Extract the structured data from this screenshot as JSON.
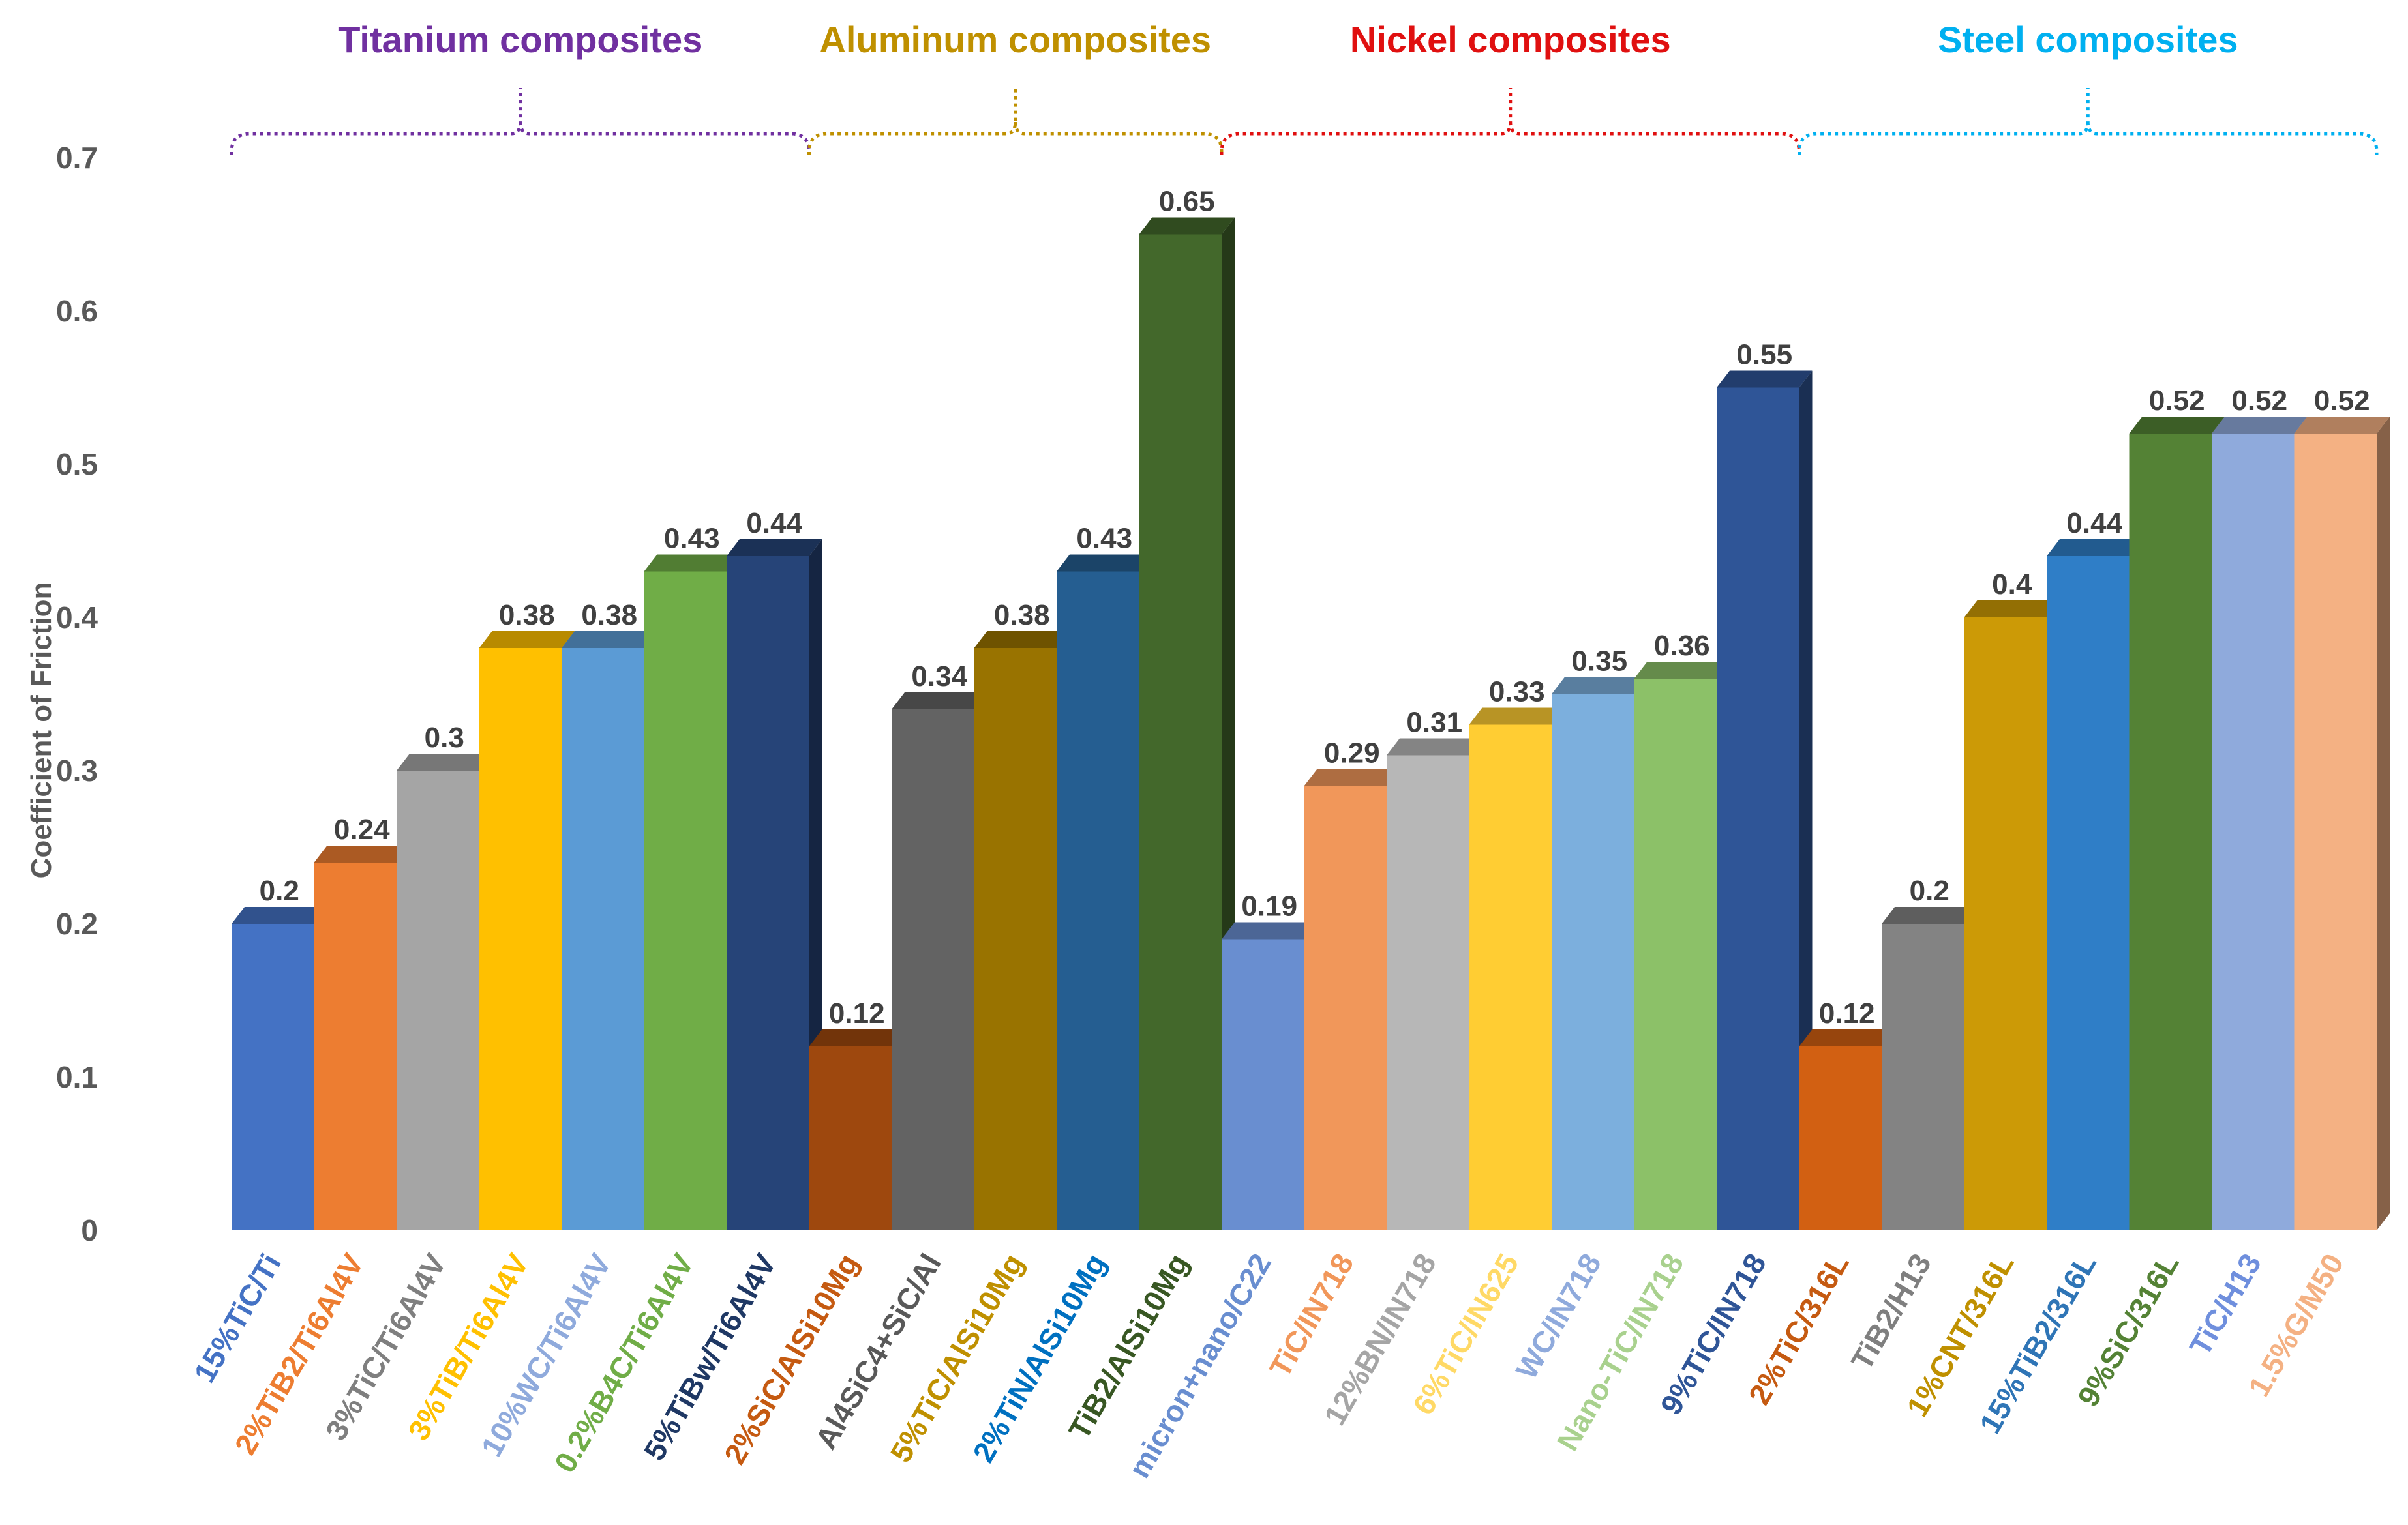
{
  "chart_data": {
    "type": "bar",
    "title": "",
    "xlabel": "",
    "ylabel": "Coefficient of Friction",
    "ylim": [
      0,
      0.7
    ],
    "yticks": [
      "0",
      "0.1",
      "0.2",
      "0.3",
      "0.4",
      "0.5",
      "0.6",
      "0.7"
    ],
    "grid": false,
    "categories": [
      "15%TiC/Ti",
      "2%TiB2/Ti6Al4V",
      "3%TiC/Ti6Al4V",
      "3%TiB/Ti6Al4V",
      "10%WC/Ti6Al4V",
      "0.2%B4C/Ti6Al4V",
      "5%TiBw/Ti6Al4V",
      "2%SiC/AlSi10Mg",
      "Al4SiC4+SiC/Al",
      "5%TiC/AlSi10Mg",
      "2%TiN/AlSi10Mg",
      "TiB2/AlSi10Mg",
      "micron+nano/C22",
      "TiC/IN718",
      "12%BN/IN718",
      "6%TiC/IN625",
      "WC/IN718",
      "Nano-TiC/IN718",
      "9%TiC/IN718",
      "2%TiC/316L",
      "TiB2/H13",
      "1%CNT/316L",
      "15%TiB2/316L",
      "9%SiC/316L",
      "TiC/H13",
      "1.5%G/M50"
    ],
    "values": [
      0.2,
      0.24,
      0.3,
      0.38,
      0.38,
      0.43,
      0.44,
      0.12,
      0.34,
      0.38,
      0.43,
      0.65,
      0.19,
      0.29,
      0.31,
      0.33,
      0.35,
      0.36,
      0.55,
      0.12,
      0.2,
      0.4,
      0.44,
      0.52,
      0.52,
      0.52
    ],
    "labels": [
      "0.2",
      "0.24",
      "0.3",
      "0.38",
      "0.38",
      "0.43",
      "0.44",
      "0.12",
      "0.34",
      "0.38",
      "0.43",
      "0.65",
      "0.19",
      "0.29",
      "0.31",
      "0.33",
      "0.35",
      "0.36",
      "0.55",
      "0.12",
      "0.2",
      "0.4",
      "0.44",
      "0.52",
      "0.52",
      "0.52"
    ],
    "colors": [
      "#4472C4",
      "#ED7D31",
      "#A5A5A5",
      "#FFC000",
      "#5B9BD5",
      "#70AD47",
      "#264478",
      "#9E480E",
      "#636363",
      "#997300",
      "#255E91",
      "#43682B",
      "#698ED0",
      "#F1975A",
      "#B7B7B7",
      "#FFCD33",
      "#7CAFDD",
      "#8CC168",
      "#2F5597",
      "#D26012",
      "#838383",
      "#CC9A06",
      "#2F7EC7",
      "#548235",
      "#8FAADC",
      "#F4B183"
    ],
    "label_colors": [
      "#4472C4",
      "#ED7D31",
      "#7F7F7F",
      "#FFC000",
      "#8FAADC",
      "#70AD47",
      "#1F3864",
      "#C55A11",
      "#595959",
      "#BF9000",
      "#0070C0",
      "#385723",
      "#698ED0",
      "#F1975A",
      "#A5A5A5",
      "#FFD966",
      "#8FAADC",
      "#A9D18E",
      "#2F5597",
      "#C55A11",
      "#7F7F7F",
      "#BF9000",
      "#2F75B6",
      "#548235",
      "#6F8FDD",
      "#F4B183"
    ],
    "groups": [
      {
        "name": "Titanium composites",
        "color": "#7030A0",
        "first": 0,
        "last": 6
      },
      {
        "name": "Aluminum composites",
        "color": "#BF9000",
        "first": 7,
        "last": 11
      },
      {
        "name": "Nickel composites",
        "color": "#E01010",
        "first": 12,
        "last": 18
      },
      {
        "name": "Steel composites",
        "color": "#00B0F0",
        "first": 19,
        "last": 25
      }
    ]
  }
}
